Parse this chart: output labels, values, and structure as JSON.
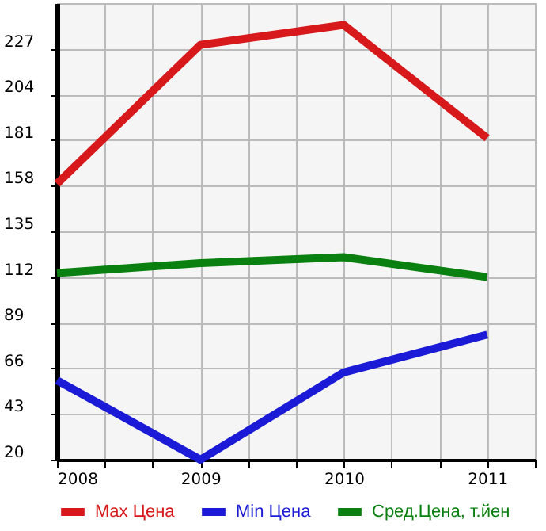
{
  "chart_data": {
    "type": "line",
    "x": [
      2008,
      2009,
      2010,
      2011
    ],
    "series": [
      {
        "name": "Max Цена",
        "color": "#d7191c",
        "values": [
          159,
          229,
          239,
          182
        ]
      },
      {
        "name": "Min Цена",
        "color": "#1a1ad7",
        "values": [
          60,
          20,
          64,
          83
        ]
      },
      {
        "name": "Сред.Цена, т.йен",
        "color": "#0a8010",
        "values": [
          114,
          119,
          122,
          112
        ]
      }
    ],
    "xlim": [
      2008,
      2011.333
    ],
    "xticks": [
      2008,
      {
        "value": 2008.333,
        "label": null
      },
      {
        "value": 2008.667,
        "label": null
      },
      2009,
      {
        "value": 2009.333,
        "label": null
      },
      {
        "value": 2009.667,
        "label": null
      },
      2010,
      {
        "value": 2010.333,
        "label": null
      },
      {
        "value": 2010.667,
        "label": null
      },
      2011,
      {
        "value": 2011.333,
        "label": null
      }
    ],
    "ylim": [
      20,
      250
    ],
    "yticks": [
      20,
      43,
      66,
      89,
      112,
      135,
      158,
      181,
      204,
      227
    ],
    "grid": true,
    "legend": "bottom",
    "marker": "none",
    "line_style": "solid"
  }
}
